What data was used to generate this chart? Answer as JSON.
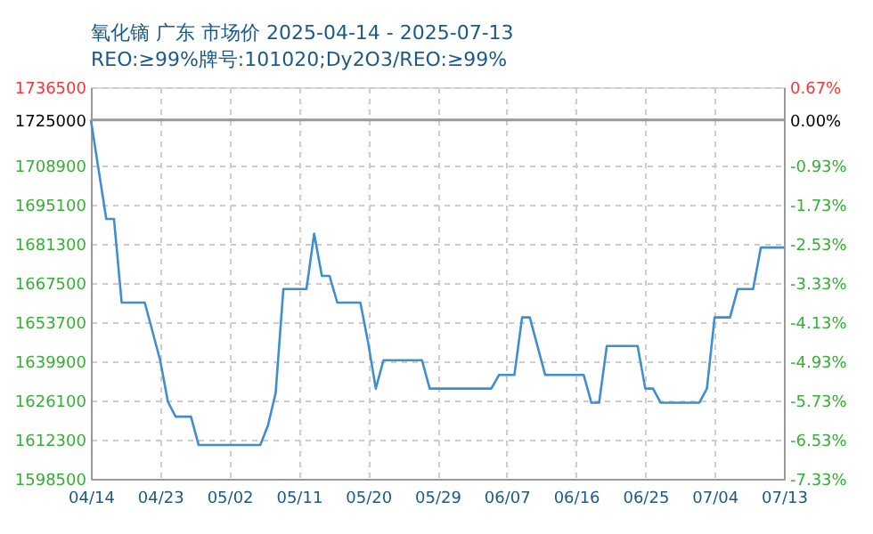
{
  "chart_data": {
    "type": "line",
    "title": "氧化镝 广东 市场价 2025-04-14 - 2025-07-13",
    "subtitle": "REO:≥99%牌号:101020;Dy2O3/REO:≥99%",
    "x": [
      "2025-04-14",
      "2025-04-16",
      "2025-04-17",
      "2025-04-18",
      "2025-04-21",
      "2025-04-23",
      "2025-04-24",
      "2025-04-25",
      "2025-04-27",
      "2025-04-28",
      "2025-05-06",
      "2025-05-07",
      "2025-05-08",
      "2025-05-09",
      "2025-05-12",
      "2025-05-13",
      "2025-05-14",
      "2025-05-15",
      "2025-05-16",
      "2025-05-19",
      "2025-05-20",
      "2025-05-21",
      "2025-05-22",
      "2025-05-27",
      "2025-05-28",
      "2025-06-05",
      "2025-06-06",
      "2025-06-08",
      "2025-06-09",
      "2025-06-10",
      "2025-06-12",
      "2025-06-17",
      "2025-06-18",
      "2025-06-19",
      "2025-06-20",
      "2025-06-24",
      "2025-06-25",
      "2025-06-26",
      "2025-06-27",
      "2025-07-02",
      "2025-07-03",
      "2025-07-04",
      "2025-07-06",
      "2025-07-07",
      "2025-07-09",
      "2025-07-10",
      "2025-07-13"
    ],
    "series": [
      {
        "color": "#3d8fd1",
        "values": [
          1725000,
          1690100,
          1690100,
          1660600,
          1660600,
          1640300,
          1625700,
          1620400,
          1620400,
          1610400,
          1610400,
          1617300,
          1628800,
          1665400,
          1665400,
          1684900,
          1670000,
          1670000,
          1660600,
          1660600,
          1646600,
          1630300,
          1640300,
          1640300,
          1630300,
          1630300,
          1635100,
          1635100,
          1655400,
          1655400,
          1635100,
          1635100,
          1625300,
          1625300,
          1645300,
          1645300,
          1630300,
          1630300,
          1625300,
          1625300,
          1630300,
          1655400,
          1655400,
          1665400,
          1665400,
          1680000,
          1680000
        ]
      }
    ],
    "xlim": [
      "2025-04-14",
      "2025-07-13"
    ],
    "xticks": [
      {
        "value": "2025-04-14",
        "label": "04/14"
      },
      {
        "value": "2025-04-23",
        "label": "04/23"
      },
      {
        "value": "2025-05-02",
        "label": "05/02"
      },
      {
        "value": "2025-05-11",
        "label": "05/11"
      },
      {
        "value": "2025-05-20",
        "label": "05/20"
      },
      {
        "value": "2025-05-29",
        "label": "05/29"
      },
      {
        "value": "2025-06-07",
        "label": "06/07"
      },
      {
        "value": "2025-06-16",
        "label": "06/16"
      },
      {
        "value": "2025-06-25",
        "label": "06/25"
      },
      {
        "value": "2025-07-04",
        "label": "07/04"
      },
      {
        "value": "2025-07-13",
        "label": "07/13"
      }
    ],
    "ylim": [
      1598500,
      1736500
    ],
    "yticks": [
      1598500,
      1612300,
      1626100,
      1639900,
      1653700,
      1667500,
      1681300,
      1695100,
      1708900,
      1725000,
      1736500
    ],
    "y2lim": [
      -7.33,
      0.67
    ],
    "y2ticks": [
      {
        "value": -7.33,
        "label": "-7.33%"
      },
      {
        "value": -6.53,
        "label": "-6.53%"
      },
      {
        "value": -5.73,
        "label": "-5.73%"
      },
      {
        "value": -4.93,
        "label": "-4.93%"
      },
      {
        "value": -4.13,
        "label": "-4.13%"
      },
      {
        "value": -3.33,
        "label": "-3.33%"
      },
      {
        "value": -2.53,
        "label": "-2.53%"
      },
      {
        "value": -1.73,
        "label": "-1.73%"
      },
      {
        "value": -0.93,
        "label": "-0.93%"
      },
      {
        "value": 0,
        "label": "0.00%"
      },
      {
        "value": 0.67,
        "label": "0.67%"
      }
    ],
    "ref_lines": [
      {
        "axis": "y2",
        "value": 0,
        "color": "#999999"
      }
    ],
    "grid": true,
    "marker": "none",
    "line_style": "solid"
  }
}
